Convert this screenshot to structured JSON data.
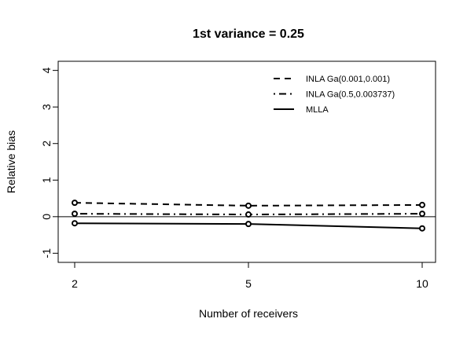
{
  "chart_data": {
    "type": "line",
    "title": "1st variance = 0.25",
    "xlabel": "Number of receivers",
    "ylabel": "Relative bias",
    "x": [
      2,
      5,
      10
    ],
    "x_ticks": [
      "2",
      "5",
      "10"
    ],
    "y_ticks": [
      "-1",
      "0",
      "1",
      "2",
      "3",
      "4"
    ],
    "ylim": [
      -1.25,
      4.25
    ],
    "reference_line": 0,
    "grid": false,
    "legend_position": "top-right",
    "series": [
      {
        "name": "INLA Ga(0.001,0.001)",
        "style": "dashed",
        "values": [
          0.38,
          0.3,
          0.32
        ]
      },
      {
        "name": "INLA Ga(0.5,0.003737)",
        "style": "dotdash",
        "values": [
          0.08,
          0.06,
          0.08
        ]
      },
      {
        "name": "MLLA",
        "style": "solid",
        "values": [
          -0.18,
          -0.2,
          -0.32
        ]
      }
    ],
    "colors": {
      "line": "#000000",
      "background": "#ffffff"
    }
  }
}
